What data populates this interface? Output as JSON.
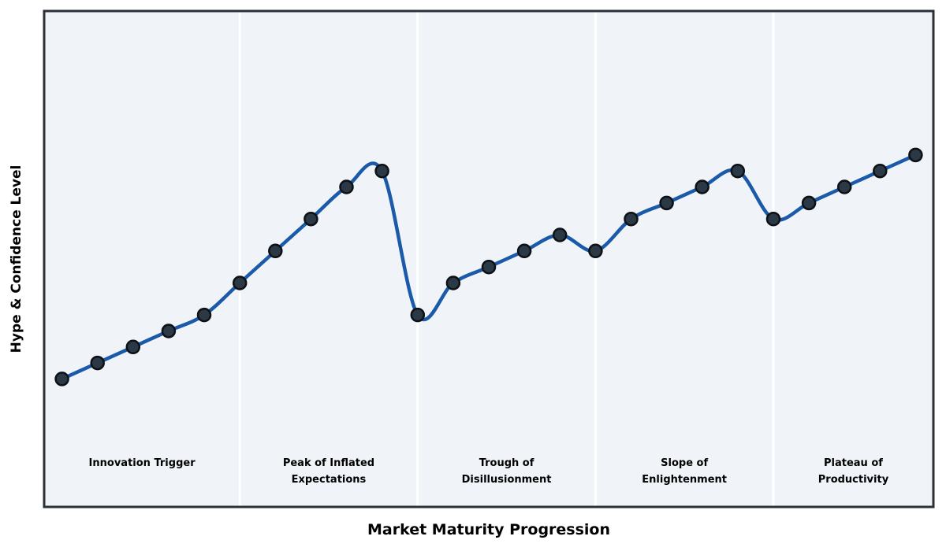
{
  "chart_data": {
    "type": "line",
    "title": "",
    "xlabel": "Market Maturity Progression",
    "ylabel": "Hype & Confidence Level",
    "x": [
      0,
      1,
      2,
      3,
      4,
      5,
      6,
      7,
      8,
      9,
      10,
      11,
      12,
      13,
      14,
      15,
      16,
      17,
      18,
      19,
      20,
      21,
      22,
      23,
      24
    ],
    "series": [
      {
        "name": "Hype & Confidence Level",
        "values": [
          10,
          11,
          12,
          13,
          14,
          16,
          18,
          20,
          22,
          23,
          14,
          16,
          17,
          18,
          19,
          18,
          20,
          21,
          22,
          23,
          20,
          21,
          22,
          23,
          24
        ]
      }
    ],
    "xlim": [
      -0.5,
      24.5
    ],
    "ylim": [
      2,
      33
    ],
    "grid": false,
    "legend_position": "none",
    "axis_ticks": "none",
    "curve_style": "smooth-spline",
    "phases": [
      {
        "label": "Innovation Trigger",
        "lines": [
          "Innovation Trigger"
        ],
        "x_start": -0.5,
        "x_end": 5
      },
      {
        "label": "Peak of Inflated Expectations",
        "lines": [
          "Peak of Inflated",
          "Expectations"
        ],
        "x_start": 5,
        "x_end": 10
      },
      {
        "label": "Trough of Disillusionment",
        "lines": [
          "Trough of",
          "Disillusionment"
        ],
        "x_start": 10,
        "x_end": 15
      },
      {
        "label": "Slope of Enlightenment",
        "lines": [
          "Slope of",
          "Enlightenment"
        ],
        "x_start": 15,
        "x_end": 20
      },
      {
        "label": "Plateau of Productivity",
        "lines": [
          "Plateau of",
          "Productivity"
        ],
        "x_start": 20,
        "x_end": 24.5
      }
    ],
    "separator_x": [
      5,
      10,
      15,
      20
    ],
    "colors": {
      "line": "#1a5aa8",
      "point_fill": "#2b3845",
      "point_stroke": "#0d1014",
      "plot_background": "#f0f4f8",
      "plot_border": "#2b2f36",
      "separator": "#ffffff",
      "text": "#000000",
      "page_background": "#ffffff"
    }
  }
}
